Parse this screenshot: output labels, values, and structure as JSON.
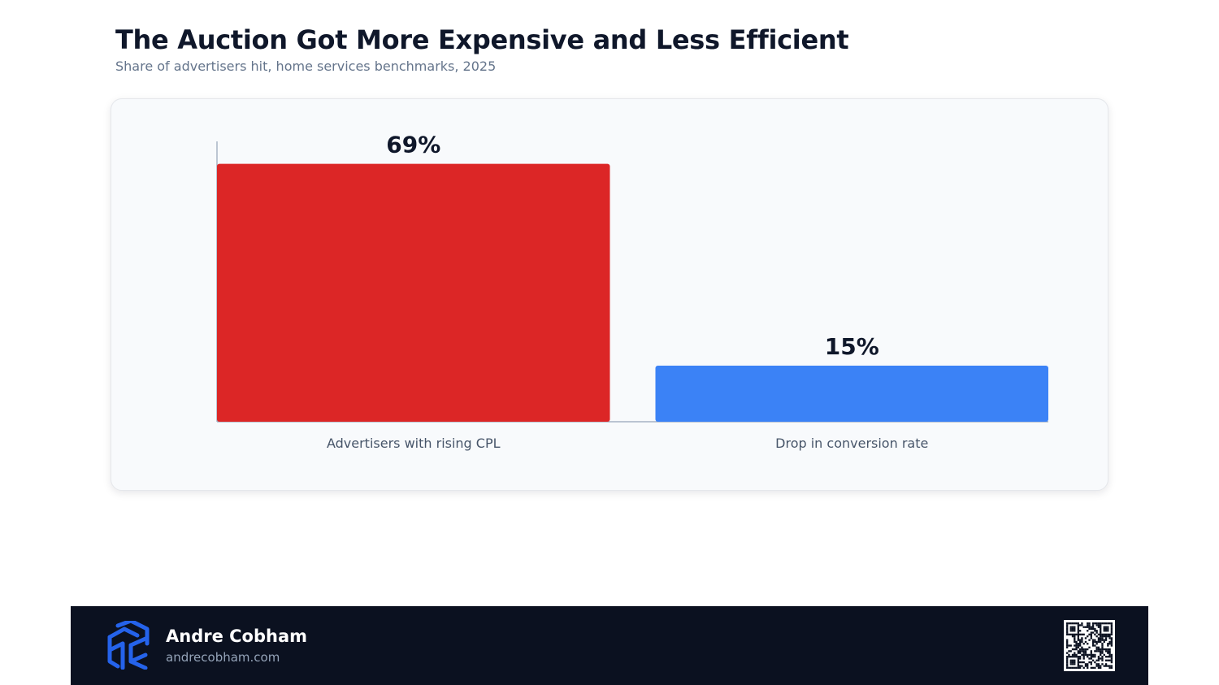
{
  "header": {
    "title": "The Auction Got More Expensive and Less Efficient",
    "subtitle": "Share of advertisers hit, home services benchmarks, 2025"
  },
  "chart_data": {
    "type": "bar",
    "title": "The Auction Got More Expensive and Less Efficient",
    "subtitle": "Share of advertisers hit, home services benchmarks, 2025",
    "categories": [
      "Advertisers with rising CPL",
      "Drop in conversion rate"
    ],
    "values": [
      69,
      15
    ],
    "value_labels": [
      "69%",
      "15%"
    ],
    "colors": [
      "#dc2626",
      "#3b82f6"
    ],
    "xlabel": "",
    "ylabel": "",
    "ylim": [
      0,
      75
    ],
    "grid": false,
    "legend": "none"
  },
  "footer": {
    "name": "Andre Cobham",
    "url": "andrecobham.com",
    "logo_icon": "ac-cube-logo-icon",
    "qr_icon": "qr-code-icon"
  },
  "colors": {
    "footer_bg": "#0b1120",
    "logo_blue": "#2563eb",
    "axis": "#94a3b8"
  }
}
